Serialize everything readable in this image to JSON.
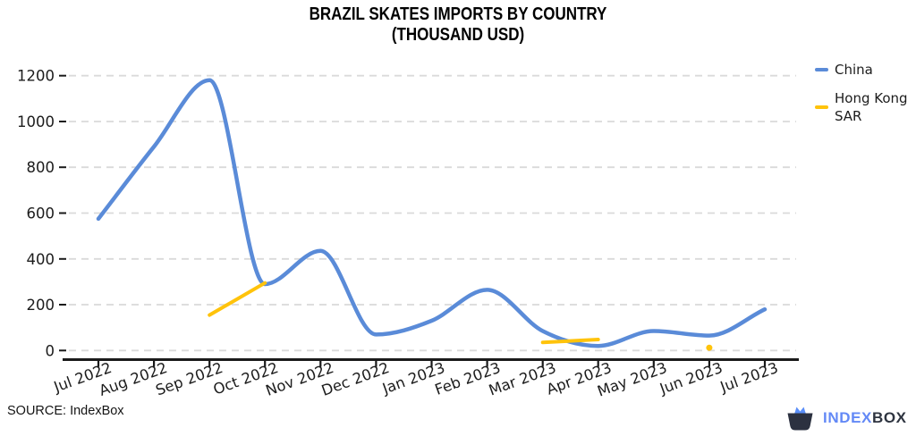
{
  "title": {
    "line1": "BRAZIL SKATES IMPORTS BY COUNTRY",
    "line2": "(THOUSAND USD)"
  },
  "source": {
    "label": "SOURCE: IndexBox"
  },
  "branding": {
    "name_part1": "INDEX",
    "name_part2": "BOX",
    "icon": "indexbox-basket-icon",
    "text_blue": "#6389F6",
    "text_dark": "#2E3440",
    "icon_dark": "#2C3140",
    "icon_blue": "#5B8FF9"
  },
  "colors": {
    "china_line": "#5A8BD8",
    "hong_kong_line": "#FFC30B",
    "grid": "#DADADA",
    "axis": "#1A1A1A",
    "tick_text": "#1C1C1C",
    "background": "#FFFFFF"
  },
  "chart_data": {
    "type": "line",
    "title": "BRAZIL SKATES IMPORTS BY COUNTRY (THOUSAND USD)",
    "xlabel": "",
    "ylabel": "",
    "categories": [
      "Jul 2022",
      "Aug 2022",
      "Sep 2022",
      "Oct 2022",
      "Nov 2022",
      "Dec 2022",
      "Jan 2023",
      "Feb 2023",
      "Mar 2023",
      "Apr 2023",
      "May 2023",
      "Jun 2023",
      "Jul 2023"
    ],
    "series": [
      {
        "name": "China",
        "color": "#5A8BD8",
        "line_style": "smooth",
        "values": [
          575,
          890,
          1180,
          290,
          435,
          70,
          130,
          265,
          85,
          20,
          85,
          65,
          180
        ]
      },
      {
        "name": "Hong Kong SAR",
        "color": "#FFC30B",
        "line_style": "straight-segments",
        "values": [
          null,
          null,
          155,
          295,
          null,
          null,
          null,
          null,
          35,
          48,
          null,
          12,
          null
        ]
      }
    ],
    "y_ticks": [
      0,
      200,
      400,
      600,
      800,
      1000,
      1200
    ],
    "ylim": [
      0,
      1200
    ],
    "grid": "horizontal-dashed",
    "legend_position": "right"
  }
}
